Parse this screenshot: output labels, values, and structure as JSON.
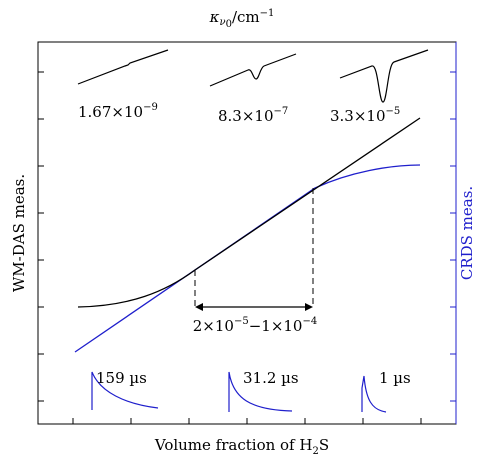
{
  "header": {
    "top_label": {
      "kappa": "κ",
      "nu": "ν",
      "nu_sub": "0",
      "unit": "/cm",
      "unit_exp": "−1"
    }
  },
  "axes": {
    "left_label": "WM-DAS meas.",
    "right_label": "CRDS meas.",
    "bottom_label": {
      "text": "Volume fraction of H",
      "sub": "2",
      "tail": "S"
    }
  },
  "absorption_insets": [
    {
      "base": "1.67×10",
      "exp": "−9"
    },
    {
      "base": "8.3×10",
      "exp": "−7"
    },
    {
      "base": "3.3×10",
      "exp": "−5"
    }
  ],
  "range_label": {
    "base1": "2×10",
    "exp1": "−5",
    "mid": "−1×10",
    "exp2": "−4"
  },
  "ringdown_insets": [
    "159 µs",
    "31.2 µs",
    "1 µs"
  ]
}
